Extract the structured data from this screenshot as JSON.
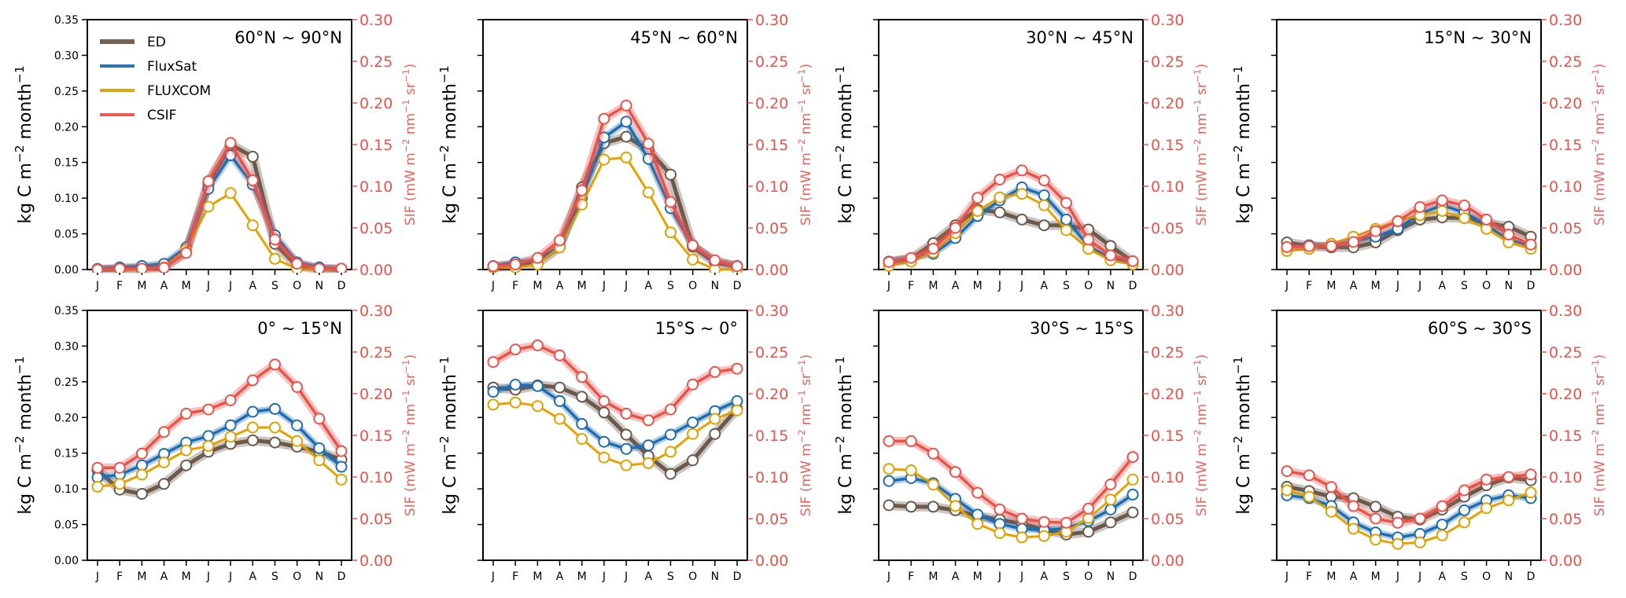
{
  "chart_data": {
    "type": "line",
    "figure_layout": "2 rows x 4 columns of panels",
    "months": [
      "J",
      "F",
      "M",
      "A",
      "M",
      "J",
      "J",
      "A",
      "S",
      "O",
      "N",
      "D"
    ],
    "left_axis": {
      "label_main": "kg C m",
      "label_sup1": "−2",
      "label_mid": " month",
      "label_sup2": "−1",
      "ylim": [
        0,
        0.35
      ],
      "ticks": [
        "0.00",
        "0.05",
        "0.10",
        "0.15",
        "0.20",
        "0.25",
        "0.30",
        "0.35"
      ],
      "tick_values": [
        0,
        0.05,
        0.1,
        0.15,
        0.2,
        0.25,
        0.3,
        0.35
      ],
      "labels_shown_on": "first column only"
    },
    "right_axis": {
      "label_main": "SIF (mW m",
      "label_sup1": "−2",
      "label_mid": " nm",
      "label_sup2": "−1",
      "label_mid2": " sr",
      "label_sup3": "−1",
      "label_end": ")",
      "ylim": [
        0,
        0.3
      ],
      "ticks": [
        "0.00",
        "0.05",
        "0.10",
        "0.15",
        "0.20",
        "0.25",
        "0.30"
      ],
      "tick_values": [
        0,
        0.05,
        0.1,
        0.15,
        0.2,
        0.25,
        0.3
      ],
      "color": "#e8534a"
    },
    "legend": {
      "placement": "upper-left of first panel",
      "entries": [
        {
          "name": "ED",
          "color": "#6b5a4c"
        },
        {
          "name": "FluxSat",
          "color": "#1f6cb0"
        },
        {
          "name": "FLUXCOM",
          "color": "#e0a000"
        },
        {
          "name": "CSIF",
          "color": "#e8534a"
        }
      ]
    },
    "series_axes": {
      "ED": "left",
      "FluxSat": "left",
      "FLUXCOM": "left",
      "CSIF": "right"
    },
    "panels": [
      {
        "title": "60°N ~ 90°N",
        "series": [
          {
            "name": "ED",
            "values": [
              0.0,
              0.0,
              0.002,
              0.004,
              0.025,
              0.12,
              0.175,
              0.158,
              0.036,
              0.005,
              0.001,
              0.0
            ]
          },
          {
            "name": "FluxSat",
            "values": [
              0.001,
              0.003,
              0.005,
              0.008,
              0.031,
              0.113,
              0.16,
              0.119,
              0.048,
              0.01,
              0.003,
              0.001
            ]
          },
          {
            "name": "FLUXCOM",
            "values": [
              0.0,
              0.0,
              0.0,
              0.003,
              0.028,
              0.088,
              0.107,
              0.062,
              0.015,
              0.001,
              0.0,
              0.0
            ]
          },
          {
            "name": "CSIF",
            "values": [
              0.0,
              0.001,
              0.001,
              0.002,
              0.02,
              0.106,
              0.152,
              0.107,
              0.036,
              0.007,
              0.001,
              0.001
            ]
          }
        ]
      },
      {
        "title": "45°N ~ 60°N",
        "series": [
          {
            "name": "ED",
            "values": [
              0.003,
              0.005,
              0.009,
              0.031,
              0.115,
              0.177,
              0.186,
              0.168,
              0.133,
              0.032,
              0.01,
              0.005
            ]
          },
          {
            "name": "FluxSat",
            "values": [
              0.005,
              0.01,
              0.014,
              0.032,
              0.1,
              0.185,
              0.207,
              0.155,
              0.086,
              0.034,
              0.012,
              0.005
            ]
          },
          {
            "name": "FLUXCOM",
            "values": [
              0.003,
              0.003,
              0.007,
              0.031,
              0.091,
              0.154,
              0.157,
              0.108,
              0.052,
              0.014,
              0.0,
              0.0
            ]
          },
          {
            "name": "CSIF",
            "values": [
              0.004,
              0.006,
              0.014,
              0.035,
              0.095,
              0.181,
              0.197,
              0.151,
              0.081,
              0.029,
              0.011,
              0.004
            ]
          }
        ]
      },
      {
        "title": "30°N ~ 45°N",
        "series": [
          {
            "name": "ED",
            "values": [
              0.011,
              0.015,
              0.037,
              0.062,
              0.084,
              0.08,
              0.07,
              0.062,
              0.062,
              0.056,
              0.033,
              0.011
            ]
          },
          {
            "name": "FluxSat",
            "values": [
              0.011,
              0.016,
              0.022,
              0.044,
              0.075,
              0.097,
              0.115,
              0.104,
              0.07,
              0.033,
              0.016,
              0.011
            ]
          },
          {
            "name": "FLUXCOM",
            "values": [
              0.005,
              0.011,
              0.024,
              0.051,
              0.082,
              0.101,
              0.106,
              0.09,
              0.055,
              0.029,
              0.013,
              0.007
            ]
          },
          {
            "name": "CSIF",
            "values": [
              0.009,
              0.014,
              0.025,
              0.05,
              0.086,
              0.108,
              0.119,
              0.107,
              0.08,
              0.036,
              0.017,
              0.01
            ]
          }
        ]
      },
      {
        "title": "15°N ~ 30°N",
        "series": [
          {
            "name": "ED",
            "values": [
              0.038,
              0.033,
              0.031,
              0.031,
              0.038,
              0.055,
              0.07,
              0.073,
              0.072,
              0.065,
              0.06,
              0.046
            ]
          },
          {
            "name": "FluxSat",
            "values": [
              0.031,
              0.034,
              0.033,
              0.04,
              0.046,
              0.057,
              0.078,
              0.09,
              0.08,
              0.062,
              0.042,
              0.033
            ]
          },
          {
            "name": "FLUXCOM",
            "values": [
              0.026,
              0.029,
              0.036,
              0.046,
              0.057,
              0.068,
              0.076,
              0.082,
              0.072,
              0.057,
              0.038,
              0.029
            ]
          },
          {
            "name": "CSIF",
            "values": [
              0.027,
              0.028,
              0.028,
              0.033,
              0.046,
              0.058,
              0.075,
              0.083,
              0.077,
              0.06,
              0.042,
              0.03
            ]
          }
        ]
      },
      {
        "title": "0° ~ 15°N",
        "series": [
          {
            "name": "ED",
            "values": [
              0.126,
              0.099,
              0.093,
              0.107,
              0.133,
              0.152,
              0.163,
              0.168,
              0.165,
              0.159,
              0.152,
              0.141
            ]
          },
          {
            "name": "FluxSat",
            "values": [
              0.116,
              0.12,
              0.133,
              0.149,
              0.165,
              0.174,
              0.189,
              0.208,
              0.212,
              0.189,
              0.157,
              0.131
            ]
          },
          {
            "name": "FLUXCOM",
            "values": [
              0.103,
              0.107,
              0.12,
              0.137,
              0.154,
              0.16,
              0.173,
              0.186,
              0.186,
              0.167,
              0.14,
              0.113
            ]
          },
          {
            "name": "CSIF",
            "values": [
              0.111,
              0.111,
              0.128,
              0.154,
              0.176,
              0.181,
              0.192,
              0.216,
              0.235,
              0.208,
              0.17,
              0.131
            ]
          }
        ]
      },
      {
        "title": "15°S ~ 0°",
        "series": [
          {
            "name": "ED",
            "values": [
              0.242,
              0.239,
              0.245,
              0.242,
              0.229,
              0.207,
              0.176,
              0.146,
              0.121,
              0.14,
              0.177,
              0.212
            ]
          },
          {
            "name": "FluxSat",
            "values": [
              0.236,
              0.246,
              0.244,
              0.223,
              0.191,
              0.166,
              0.156,
              0.161,
              0.176,
              0.193,
              0.209,
              0.223
            ]
          },
          {
            "name": "FLUXCOM",
            "values": [
              0.218,
              0.221,
              0.216,
              0.198,
              0.17,
              0.144,
              0.133,
              0.136,
              0.152,
              0.177,
              0.198,
              0.21
            ]
          },
          {
            "name": "CSIF",
            "values": [
              0.238,
              0.253,
              0.258,
              0.246,
              0.22,
              0.191,
              0.176,
              0.168,
              0.181,
              0.211,
              0.226,
              0.23
            ]
          }
        ]
      },
      {
        "title": "30°S ~ 15°S",
        "series": [
          {
            "name": "ED",
            "values": [
              0.077,
              0.075,
              0.075,
              0.07,
              0.062,
              0.057,
              0.051,
              0.043,
              0.036,
              0.04,
              0.053,
              0.067
            ]
          },
          {
            "name": "FluxSat",
            "values": [
              0.111,
              0.115,
              0.108,
              0.086,
              0.064,
              0.051,
              0.044,
              0.042,
              0.045,
              0.055,
              0.071,
              0.092
            ]
          },
          {
            "name": "FLUXCOM",
            "values": [
              0.128,
              0.126,
              0.106,
              0.076,
              0.051,
              0.038,
              0.032,
              0.034,
              0.04,
              0.059,
              0.085,
              0.113
            ]
          },
          {
            "name": "CSIF",
            "values": [
              0.143,
              0.143,
              0.128,
              0.106,
              0.081,
              0.061,
              0.05,
              0.046,
              0.045,
              0.062,
              0.091,
              0.124
            ]
          }
        ]
      },
      {
        "title": "60°S ~ 30°S",
        "series": [
          {
            "name": "ED",
            "values": [
              0.103,
              0.097,
              0.089,
              0.087,
              0.075,
              0.061,
              0.057,
              0.071,
              0.089,
              0.105,
              0.116,
              0.112
            ]
          },
          {
            "name": "FluxSat",
            "values": [
              0.091,
              0.087,
              0.076,
              0.053,
              0.039,
              0.032,
              0.037,
              0.05,
              0.07,
              0.084,
              0.091,
              0.087
            ]
          },
          {
            "name": "FLUXCOM",
            "values": [
              0.098,
              0.089,
              0.068,
              0.044,
              0.029,
              0.023,
              0.025,
              0.035,
              0.053,
              0.073,
              0.084,
              0.095
            ]
          },
          {
            "name": "CSIF",
            "values": [
              0.107,
              0.102,
              0.088,
              0.065,
              0.05,
              0.045,
              0.05,
              0.065,
              0.084,
              0.097,
              0.1,
              0.103
            ]
          }
        ]
      }
    ],
    "grid": false,
    "markers": "open circles (white fill)",
    "uncertainty_band": "shaded band around each series"
  }
}
